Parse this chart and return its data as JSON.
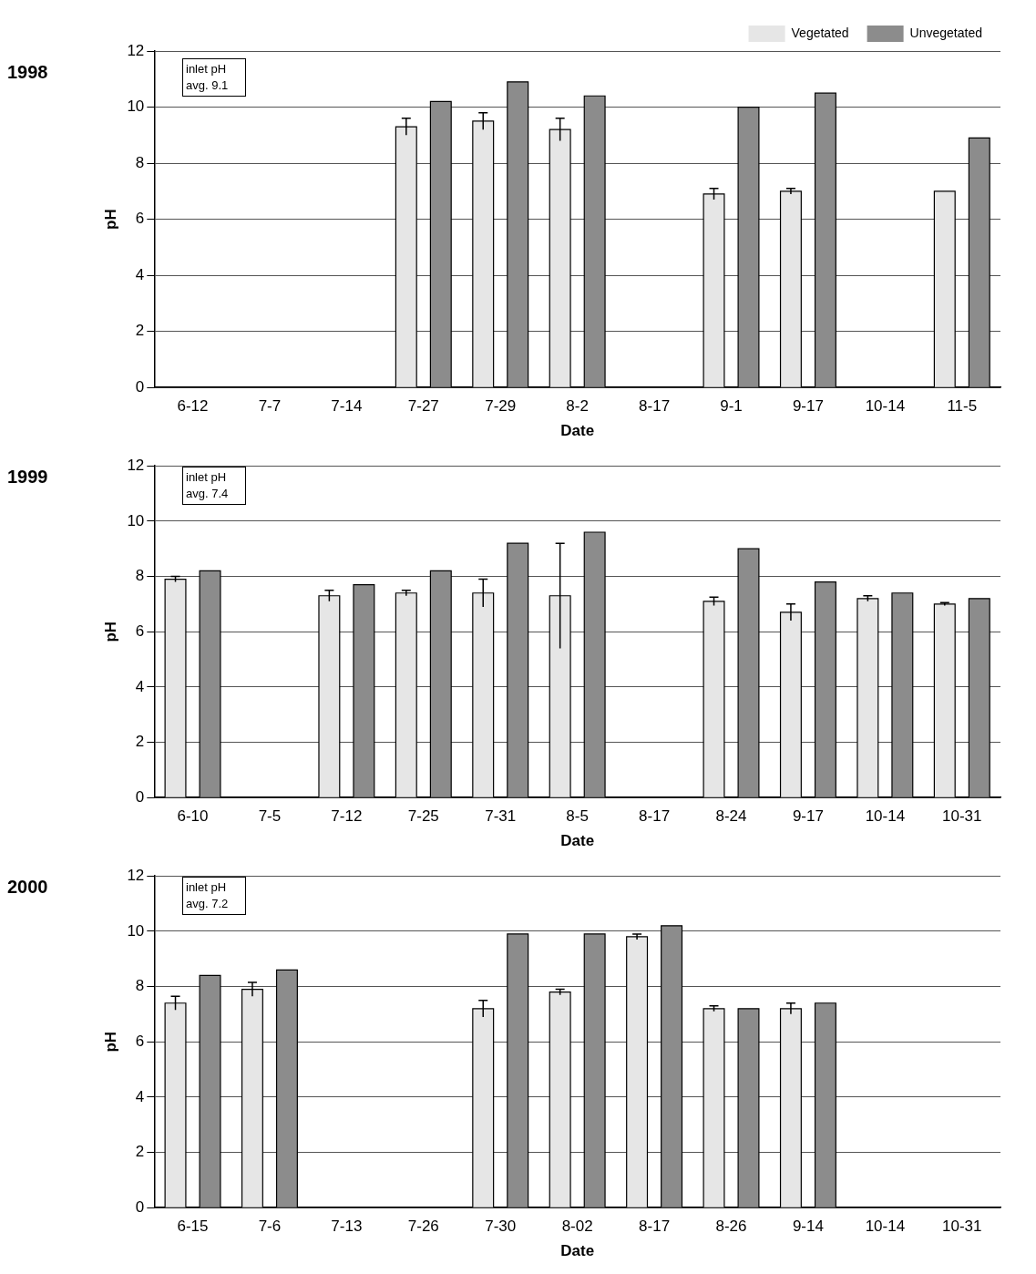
{
  "chart_data": [
    {
      "type": "bar",
      "title": "1998",
      "xlabel": "Date",
      "ylabel": "pH",
      "categories": [
        "6-12",
        "7-7",
        "7-14",
        "7-27",
        "7-29",
        "8-2",
        "8-17",
        "9-1",
        "9-17",
        "10-14",
        "11-5"
      ],
      "series": [
        {
          "name": "Vegetated",
          "color": "#e6e6e6",
          "values": [
            null,
            null,
            null,
            9.3,
            9.5,
            9.2,
            null,
            6.9,
            7.0,
            null,
            7.0
          ],
          "errors": [
            null,
            null,
            null,
            0.3,
            0.3,
            0.4,
            null,
            0.2,
            0.1,
            null,
            null
          ]
        },
        {
          "name": "Unvegetated",
          "color": "#8c8c8c",
          "values": [
            null,
            null,
            null,
            10.2,
            10.9,
            10.4,
            null,
            10.0,
            10.5,
            null,
            8.9
          ]
        }
      ],
      "ylim": [
        0,
        12
      ],
      "yticks": [
        0,
        2,
        4,
        6,
        8,
        10,
        12
      ],
      "grid": "y",
      "legend": "top right",
      "annotations": [
        "inlet pH avg. 9.1"
      ]
    },
    {
      "type": "bar",
      "title": "1999",
      "xlabel": "Date",
      "ylabel": "pH",
      "categories": [
        "6-10",
        "7-5",
        "7-12",
        "7-25",
        "7-31",
        "8-5",
        "8-17",
        "8-24",
        "9-17",
        "10-14",
        "10-31"
      ],
      "series": [
        {
          "color": "#e6e6e6",
          "values": [
            7.9,
            null,
            7.3,
            7.4,
            7.4,
            7.3,
            null,
            7.1,
            6.7,
            7.2,
            7.0
          ],
          "errors": [
            0.1,
            null,
            0.2,
            0.1,
            0.5,
            1.9,
            null,
            0.15,
            0.3,
            0.1,
            0.05
          ]
        },
        {
          "color": "#8c8c8c",
          "values": [
            8.2,
            null,
            7.7,
            8.2,
            9.2,
            9.6,
            null,
            9.0,
            7.8,
            7.4,
            7.2
          ]
        }
      ],
      "ylim": [
        0,
        12
      ],
      "yticks": [
        0,
        2,
        4,
        6,
        8,
        10,
        12
      ],
      "grid": "y",
      "legend": false,
      "annotations": [
        "inlet pH avg. 7.4"
      ]
    },
    {
      "type": "bar",
      "title": "2000",
      "xlabel": "Date",
      "ylabel": "pH",
      "categories": [
        "6-15",
        "7-6",
        "7-13",
        "7-26",
        "7-30",
        "8-02",
        "8-17",
        "8-26",
        "9-14",
        "10-14",
        "10-31"
      ],
      "series": [
        {
          "color": "#e6e6e6",
          "values": [
            7.4,
            7.9,
            null,
            null,
            7.2,
            7.8,
            9.8,
            7.2,
            7.2,
            null,
            null
          ],
          "errors": [
            0.25,
            0.25,
            null,
            null,
            0.3,
            0.1,
            0.1,
            0.1,
            0.2,
            null,
            null
          ]
        },
        {
          "color": "#8c8c8c",
          "values": [
            8.4,
            8.6,
            null,
            null,
            9.9,
            9.9,
            10.2,
            7.2,
            7.4,
            null,
            null
          ]
        }
      ],
      "ylim": [
        0,
        12
      ],
      "yticks": [
        0,
        2,
        4,
        6,
        8,
        10,
        12
      ],
      "grid": "y",
      "legend": false,
      "annotations": [
        "inlet pH avg. 7.2"
      ]
    }
  ]
}
